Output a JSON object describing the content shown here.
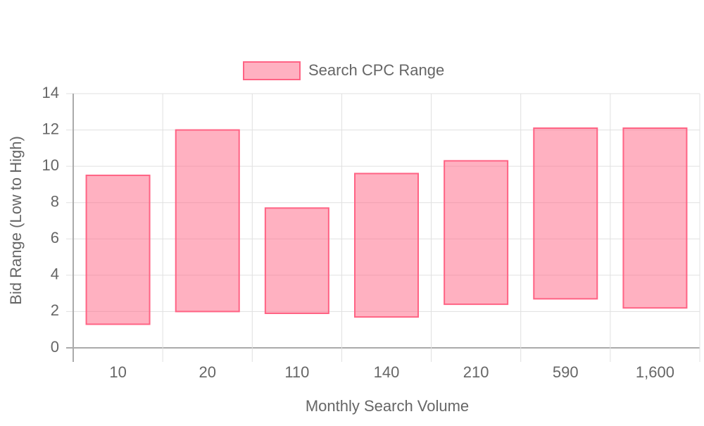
{
  "chart_data": {
    "type": "floating-bar",
    "x_label": "Monthly Search Volume",
    "y_label": "Bid Range (Low to High)",
    "categories": [
      "10",
      "20",
      "110",
      "140",
      "210",
      "590",
      "1,600"
    ],
    "series": [
      {
        "name": "Search CPC Range",
        "color": "#ff6384",
        "values": [
          [
            1.3,
            9.5
          ],
          [
            2.0,
            12.0
          ],
          [
            1.9,
            7.7
          ],
          [
            1.7,
            9.6
          ],
          [
            2.4,
            10.3
          ],
          [
            2.7,
            12.1
          ],
          [
            2.2,
            12.1
          ]
        ]
      }
    ],
    "ylim": [
      0,
      14
    ],
    "yticks": [
      0,
      2,
      4,
      6,
      8,
      10,
      12,
      14
    ],
    "grid": true,
    "legend": "top"
  }
}
